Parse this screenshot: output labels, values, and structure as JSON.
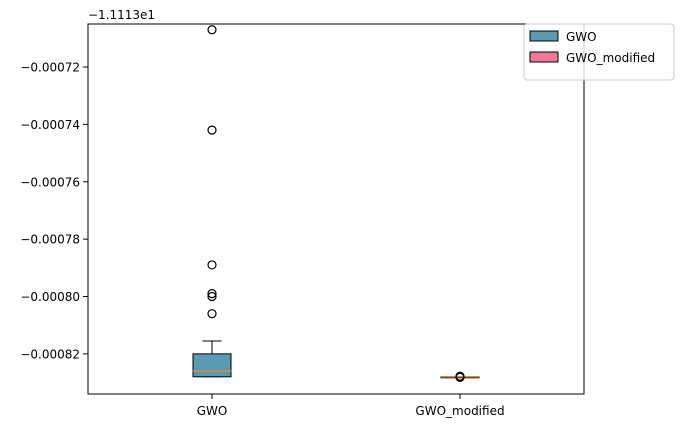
{
  "chart_data": {
    "type": "box",
    "title": "",
    "xlabel": "",
    "ylabel": "",
    "offset_label": "−1.1113e1",
    "y_is_offset_from": -11.113,
    "ylim": [
      -0.000834,
      -0.000705
    ],
    "yticks": [
      -0.00072,
      -0.00074,
      -0.00076,
      -0.00078,
      -0.0008,
      -0.00082
    ],
    "ytick_labels": [
      "−0.00072",
      "−0.00074",
      "−0.00076",
      "−0.00078",
      "−0.00080",
      "−0.00082"
    ],
    "categories": [
      "GWO",
      "GWO_modified"
    ],
    "series": [
      {
        "name": "GWO",
        "color": "#5b9ab5",
        "median_color": "#e08a45",
        "whisker_low": -0.000828,
        "q1": -0.000828,
        "median": -0.000826,
        "q3": -0.00082,
        "whisker_high": -0.0008155,
        "outliers": [
          -0.000707,
          -0.000742,
          -0.000789,
          -0.000799,
          -0.0008,
          -0.000806
        ]
      },
      {
        "name": "GWO_modified",
        "color": "#f07894",
        "median_color": "#e08a45",
        "whisker_low": -0.000828,
        "q1": -0.000828,
        "median": -0.000828,
        "q3": -0.000828,
        "whisker_high": -0.000828,
        "outliers": [
          -0.0008278,
          -0.0008282
        ]
      }
    ],
    "legend": {
      "placement": "top-right",
      "entries": [
        "GWO",
        "GWO_modified"
      ]
    },
    "grid": false
  }
}
